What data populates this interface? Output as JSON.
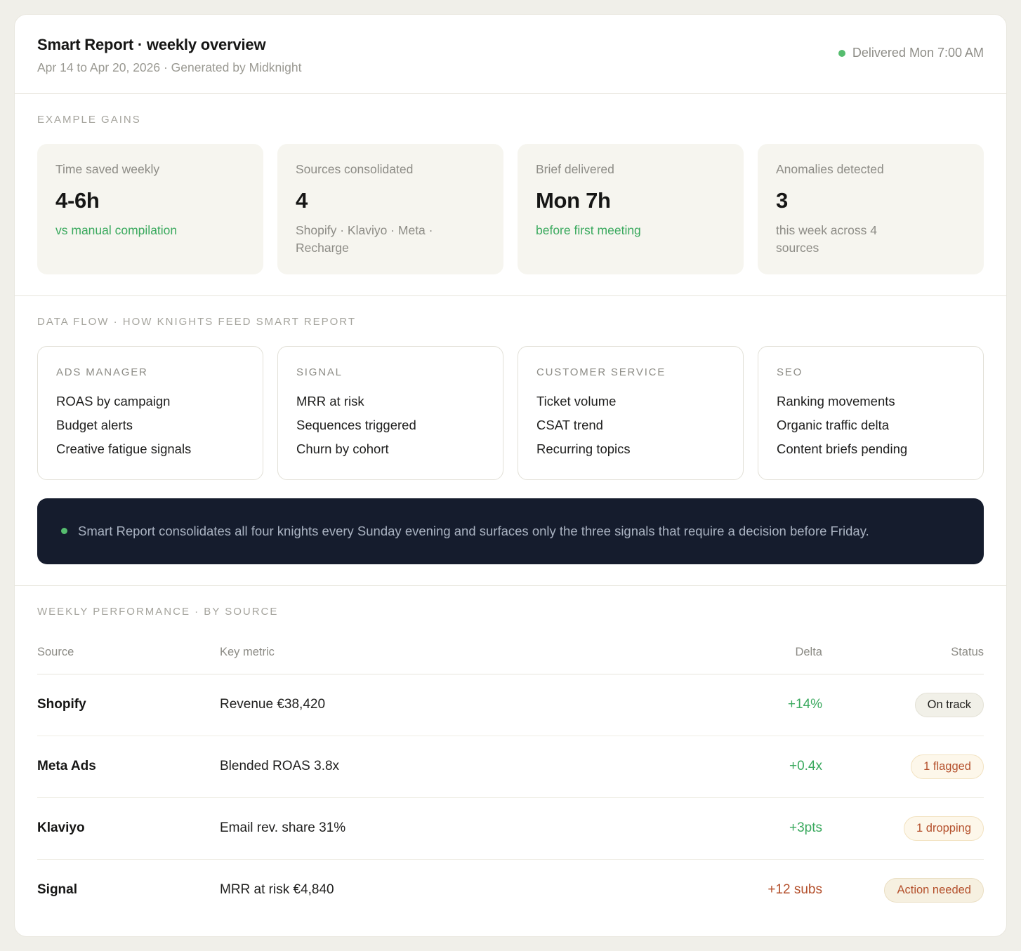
{
  "colors": {
    "green": "#3aa95e",
    "green-dot": "#56bd6f",
    "warn": "#b4502c",
    "banner-bg": "#151c2d"
  },
  "header": {
    "title": "Smart Report · weekly overview",
    "subtitle": "Apr 14 to Apr 20, 2026 · Generated by Midknight",
    "delivered": "Delivered Mon 7:00 AM"
  },
  "gains": {
    "section_label": "EXAMPLE GAINS",
    "cards": [
      {
        "label": "Time saved weekly",
        "value": "4-6h",
        "note": "vs manual compilation"
      },
      {
        "label": "Sources consolidated",
        "value": "4",
        "note": "Shopify · Klaviyo · Meta · Recharge"
      },
      {
        "label": "Brief delivered",
        "value": "Mon 7h",
        "note": "before first meeting"
      },
      {
        "label": "Anomalies detected",
        "value": "3",
        "note": "this week across 4 sources"
      }
    ]
  },
  "data_flow": {
    "section_label": "DATA FLOW · HOW KNIGHTS FEED SMART REPORT",
    "cards": [
      {
        "title": "ADS MANAGER",
        "items": [
          "ROAS by campaign",
          "Budget alerts",
          "Creative fatigue signals"
        ]
      },
      {
        "title": "SIGNAL",
        "items": [
          "MRR at risk",
          "Sequences triggered",
          "Churn by cohort"
        ]
      },
      {
        "title": "CUSTOMER SERVICE",
        "items": [
          "Ticket volume",
          "CSAT trend",
          "Recurring topics"
        ]
      },
      {
        "title": "SEO",
        "items": [
          "Ranking movements",
          "Organic traffic delta",
          "Content briefs pending"
        ]
      }
    ],
    "callout": "Smart Report consolidates all four knights every Sunday evening and surfaces only the three signals that require a decision before Friday."
  },
  "performance": {
    "section_label": "WEEKLY PERFORMANCE · BY SOURCE",
    "columns": [
      "Source",
      "Key metric",
      "Delta",
      "Status"
    ],
    "rows": [
      {
        "source": "Shopify",
        "metric": "Revenue €38,420",
        "delta": "+14%",
        "status": "On track"
      },
      {
        "source": "Meta Ads",
        "metric": "Blended ROAS 3.8x",
        "delta": "+0.4x",
        "status": "1 flagged"
      },
      {
        "source": "Klaviyo",
        "metric": "Email rev. share 31%",
        "delta": "+3pts",
        "status": "1 dropping"
      },
      {
        "source": "Signal",
        "metric": "MRR at risk €4,840",
        "delta": "+12 subs",
        "status": "Action needed"
      }
    ]
  }
}
